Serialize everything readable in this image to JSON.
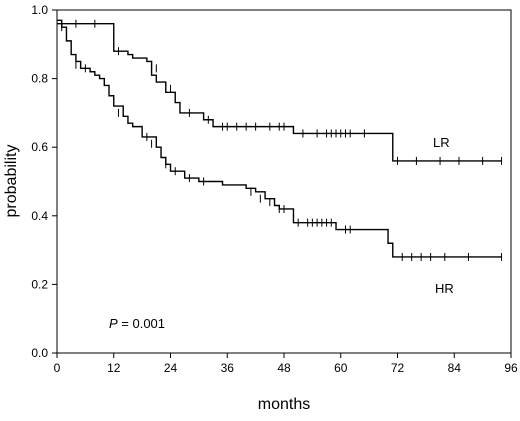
{
  "chart_data": {
    "type": "line",
    "title": "",
    "xlabel": "months",
    "ylabel": "probability",
    "xlim": [
      0,
      96
    ],
    "ylim": [
      0.0,
      1.0
    ],
    "x_ticks": [
      "0",
      "12",
      "24",
      "36",
      "48",
      "60",
      "72",
      "84",
      "96"
    ],
    "y_ticks": [
      "0.0",
      "0.2",
      "0.4",
      "0.6",
      "0.8",
      "1.0"
    ],
    "annotation": {
      "italic": "P",
      "text": " = 0.001"
    },
    "grid": false,
    "series": [
      {
        "name": "LR",
        "steps": [
          [
            0,
            0.96
          ],
          [
            12,
            0.88
          ],
          [
            15,
            0.87
          ],
          [
            16,
            0.86
          ],
          [
            19,
            0.85
          ],
          [
            20,
            0.81
          ],
          [
            21,
            0.79
          ],
          [
            23,
            0.76
          ],
          [
            25,
            0.73
          ],
          [
            26,
            0.7
          ],
          [
            31,
            0.68
          ],
          [
            33,
            0.66
          ],
          [
            50,
            0.64
          ],
          [
            71,
            0.56
          ],
          [
            94,
            0.56
          ]
        ],
        "censored": [
          [
            4,
            0.96
          ],
          [
            8,
            0.96
          ],
          [
            13,
            0.88
          ],
          [
            20,
            0.84
          ],
          [
            21,
            0.83
          ],
          [
            24,
            0.77
          ],
          [
            28,
            0.7
          ],
          [
            32,
            0.68
          ],
          [
            35,
            0.66
          ],
          [
            36,
            0.66
          ],
          [
            38,
            0.66
          ],
          [
            40,
            0.66
          ],
          [
            42,
            0.66
          ],
          [
            45,
            0.66
          ],
          [
            47,
            0.66
          ],
          [
            48,
            0.66
          ],
          [
            52,
            0.64
          ],
          [
            55,
            0.64
          ],
          [
            57,
            0.64
          ],
          [
            58,
            0.64
          ],
          [
            59,
            0.64
          ],
          [
            60,
            0.64
          ],
          [
            61,
            0.64
          ],
          [
            62,
            0.64
          ],
          [
            65,
            0.64
          ],
          [
            72,
            0.56
          ],
          [
            76,
            0.56
          ],
          [
            81,
            0.56
          ],
          [
            85,
            0.56
          ],
          [
            90,
            0.56
          ],
          [
            94,
            0.56
          ]
        ]
      },
      {
        "name": "HR",
        "steps": [
          [
            0,
            0.97
          ],
          [
            1,
            0.95
          ],
          [
            2,
            0.91
          ],
          [
            3,
            0.87
          ],
          [
            4,
            0.85
          ],
          [
            5,
            0.83
          ],
          [
            7,
            0.82
          ],
          [
            8,
            0.81
          ],
          [
            9,
            0.8
          ],
          [
            10,
            0.78
          ],
          [
            11,
            0.75
          ],
          [
            12,
            0.72
          ],
          [
            14,
            0.69
          ],
          [
            15,
            0.67
          ],
          [
            16,
            0.66
          ],
          [
            18,
            0.63
          ],
          [
            21,
            0.6
          ],
          [
            22,
            0.57
          ],
          [
            23,
            0.55
          ],
          [
            24,
            0.53
          ],
          [
            27,
            0.51
          ],
          [
            30,
            0.5
          ],
          [
            35,
            0.49
          ],
          [
            40,
            0.48
          ],
          [
            42,
            0.47
          ],
          [
            44,
            0.45
          ],
          [
            46,
            0.43
          ],
          [
            47,
            0.42
          ],
          [
            50,
            0.38
          ],
          [
            59,
            0.36
          ],
          [
            70,
            0.32
          ],
          [
            71,
            0.28
          ],
          [
            94,
            0.28
          ]
        ],
        "censored": [
          [
            1,
            0.95
          ],
          [
            4,
            0.84
          ],
          [
            6,
            0.83
          ],
          [
            13,
            0.7
          ],
          [
            19,
            0.63
          ],
          [
            20,
            0.61
          ],
          [
            23,
            0.55
          ],
          [
            25,
            0.53
          ],
          [
            28,
            0.51
          ],
          [
            31,
            0.5
          ],
          [
            41,
            0.47
          ],
          [
            43,
            0.45
          ],
          [
            45,
            0.44
          ],
          [
            47,
            0.42
          ],
          [
            48,
            0.42
          ],
          [
            51,
            0.38
          ],
          [
            53,
            0.38
          ],
          [
            54,
            0.38
          ],
          [
            55,
            0.38
          ],
          [
            56,
            0.38
          ],
          [
            57,
            0.38
          ],
          [
            58,
            0.38
          ],
          [
            61,
            0.36
          ],
          [
            62,
            0.36
          ],
          [
            73,
            0.28
          ],
          [
            75,
            0.28
          ],
          [
            77,
            0.28
          ],
          [
            79,
            0.28
          ],
          [
            82,
            0.28
          ],
          [
            87,
            0.28
          ],
          [
            94,
            0.28
          ]
        ]
      }
    ]
  }
}
